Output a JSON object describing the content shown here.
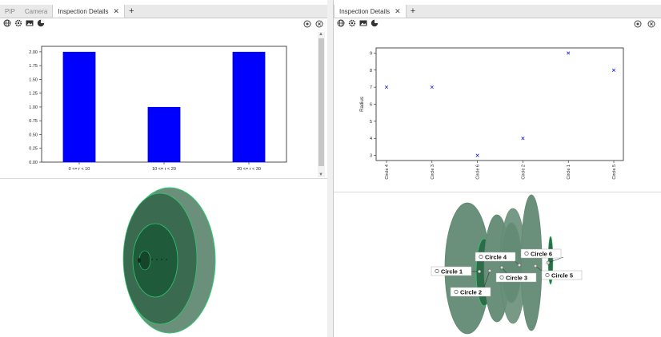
{
  "left": {
    "tabs": [
      {
        "label": "PIP",
        "active": false
      },
      {
        "label": "Camera",
        "active": false
      },
      {
        "label": "Inspection Details",
        "active": true
      }
    ],
    "close_glyph": "✕",
    "add_glyph": "+",
    "toolbar_icons": [
      "globe-icon",
      "gear-icon",
      "image-icon",
      "pie-chart-icon"
    ],
    "right_icons": [
      "settings-icon",
      "close-circle-icon"
    ]
  },
  "right": {
    "tabs": [
      {
        "label": "Inspection Details",
        "active": true
      }
    ],
    "close_glyph": "✕",
    "add_glyph": "+",
    "toolbar_icons": [
      "globe-icon",
      "gear-icon",
      "image-icon",
      "pie-chart-icon"
    ],
    "right_icons": [
      "settings-icon",
      "close-circle-icon"
    ]
  },
  "chart_data": [
    {
      "type": "bar",
      "categories": [
        "0 <= r < 10",
        "10 <= r < 20",
        "20 <= r < 30"
      ],
      "values": [
        2,
        1,
        2
      ],
      "yticks": [
        "0.00",
        "0.25",
        "0.50",
        "0.75",
        "1.00",
        "1.25",
        "1.50",
        "1.75",
        "2.00"
      ],
      "ylim": [
        0,
        2.1
      ],
      "color": "#0000ff",
      "title": "",
      "xlabel": "",
      "ylabel": ""
    },
    {
      "type": "scatter",
      "categories": [
        "Circle 4",
        "Circle 3",
        "Circle 6",
        "Circle 2",
        "Circle 1",
        "Circle 5"
      ],
      "values": [
        7,
        7,
        3,
        4,
        9,
        8
      ],
      "yticks": [
        "3",
        "4",
        "5",
        "6",
        "7",
        "8",
        "9"
      ],
      "ylim": [
        2.7,
        9.3
      ],
      "ylabel": "Radius",
      "marker": "x",
      "color": "#0000ff",
      "title": "",
      "xlabel": ""
    }
  ],
  "scene_labels": [
    "Circle 1",
    "Circle 2",
    "Circle 3",
    "Circle 4",
    "Circle 5",
    "Circle 6"
  ],
  "colors": {
    "green_dark": "#1f5a3a",
    "green_mid": "#3a7a5a",
    "green_light": "#6a8f7a",
    "edge": "#2ecc71"
  }
}
